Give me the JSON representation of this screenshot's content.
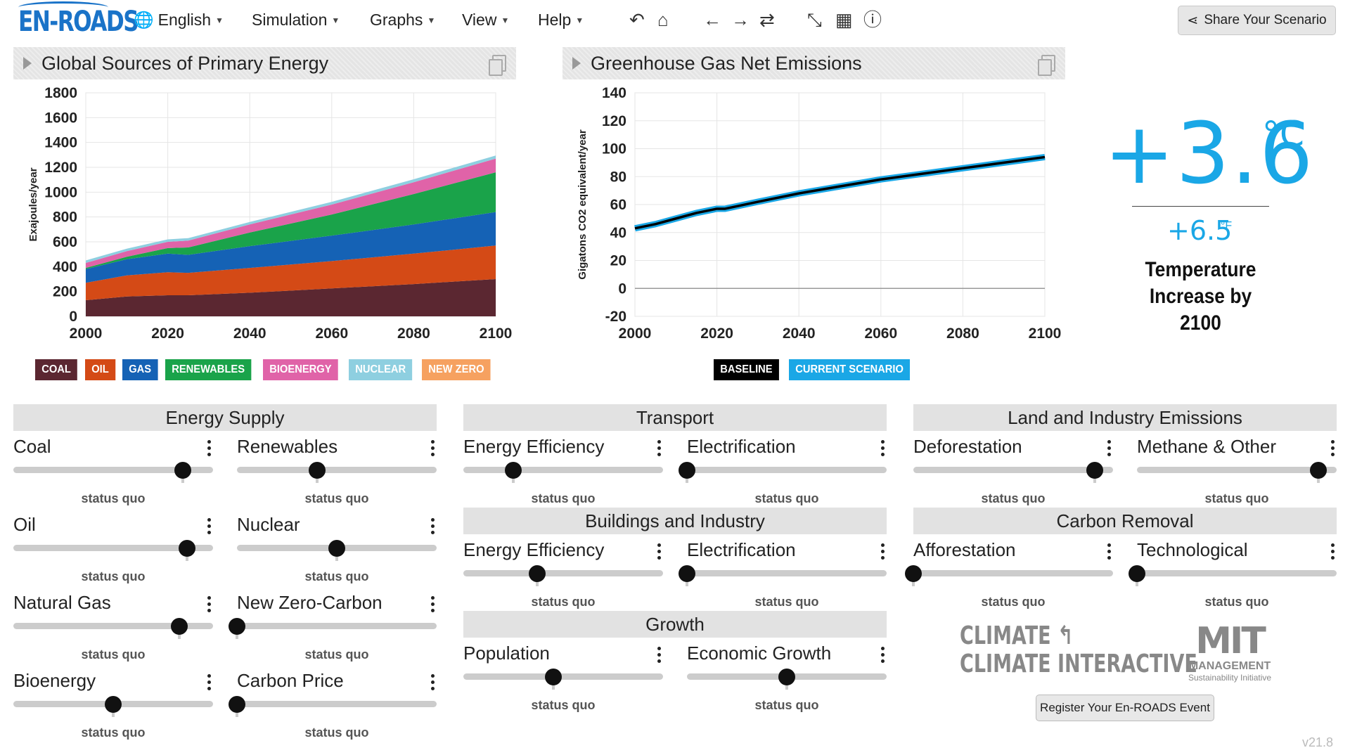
{
  "app": {
    "logo": "EN-ROADS",
    "version": "v21.8"
  },
  "nav": {
    "menus": [
      "English",
      "Simulation",
      "Graphs",
      "View",
      "Help"
    ],
    "share_label": "Share Your Scenario"
  },
  "graph1": {
    "title": "Global Sources of Primary Energy",
    "chart_data": {
      "type": "area",
      "stacked": true,
      "x": [
        2000,
        2010,
        2020,
        2025,
        2040,
        2060,
        2080,
        2100
      ],
      "series": [
        {
          "name": "COAL",
          "values": [
            130,
            160,
            170,
            170,
            190,
            225,
            260,
            300
          ]
        },
        {
          "name": "OIL",
          "values": [
            140,
            170,
            185,
            180,
            200,
            220,
            245,
            270
          ]
        },
        {
          "name": "GAS",
          "values": [
            110,
            130,
            150,
            145,
            175,
            205,
            235,
            270
          ]
        },
        {
          "name": "RENEWABLES",
          "values": [
            10,
            20,
            45,
            60,
            110,
            170,
            245,
            320
          ]
        },
        {
          "name": "BIOENERGY",
          "values": [
            40,
            45,
            50,
            55,
            65,
            80,
            95,
            110
          ]
        },
        {
          "name": "NUCLEAR",
          "values": [
            20,
            20,
            20,
            20,
            20,
            22,
            24,
            25
          ]
        },
        {
          "name": "NEW ZERO",
          "values": [
            0,
            0,
            0,
            0,
            0,
            0,
            0,
            0
          ]
        }
      ],
      "ylabel": "Exajoules/year",
      "ylim": [
        0,
        1800
      ],
      "yticks": [
        0,
        200,
        400,
        600,
        800,
        1000,
        1200,
        1400,
        1600,
        1800
      ],
      "xticks": [
        2000,
        2020,
        2040,
        2060,
        2080,
        2100
      ]
    },
    "legend": [
      "COAL",
      "OIL",
      "GAS",
      "RENEWABLES",
      "BIOENERGY",
      "NUCLEAR",
      "NEW ZERO"
    ]
  },
  "graph2": {
    "title": "Greenhouse Gas Net Emissions",
    "chart_data": {
      "type": "line",
      "x": [
        2000,
        2005,
        2010,
        2015,
        2020,
        2022,
        2030,
        2040,
        2050,
        2060,
        2070,
        2080,
        2090,
        2100
      ],
      "series": [
        {
          "name": "BASELINE",
          "values": [
            43,
            46,
            50,
            54,
            57,
            57,
            62,
            68,
            73,
            78,
            82,
            86,
            90,
            94
          ]
        },
        {
          "name": "CURRENT SCENARIO",
          "values": [
            43,
            46,
            50,
            54,
            57,
            57,
            62,
            68,
            73,
            78,
            82,
            86,
            90,
            94
          ]
        }
      ],
      "ylabel": "Gigatons CO2 equivalent/year",
      "ylim": [
        -20,
        140
      ],
      "yticks": [
        -20,
        0,
        20,
        40,
        60,
        80,
        100,
        120,
        140
      ],
      "xticks": [
        2000,
        2020,
        2040,
        2060,
        2080,
        2100
      ]
    },
    "legend": [
      "BASELINE",
      "CURRENT SCENARIO"
    ]
  },
  "temperature": {
    "celsius": "+3.6",
    "celsius_unit": "°C",
    "fahrenheit": "+6.5",
    "fahrenheit_unit": "°F",
    "caption": "Temperature Increase by 2100"
  },
  "sections": {
    "energy_supply": "Energy Supply",
    "transport": "Transport",
    "land": "Land and Industry Emissions",
    "buildings": "Buildings and Industry",
    "carbon_removal": "Carbon Removal",
    "growth": "Growth"
  },
  "sliders": {
    "coal": {
      "label": "Coal",
      "value": 0.85,
      "status": "status quo"
    },
    "oil": {
      "label": "Oil",
      "value": 0.87,
      "status": "status quo"
    },
    "gas": {
      "label": "Natural Gas",
      "value": 0.83,
      "status": "status quo"
    },
    "bio": {
      "label": "Bioenergy",
      "value": 0.5,
      "status": "status quo"
    },
    "renew": {
      "label": "Renewables",
      "value": 0.4,
      "status": "status quo"
    },
    "nuclear": {
      "label": "Nuclear",
      "value": 0.5,
      "status": "status quo"
    },
    "newzero": {
      "label": "New Zero-Carbon",
      "value": 0.0,
      "status": "status quo"
    },
    "carbon_price": {
      "label": "Carbon Price",
      "value": 0.0,
      "status": "status quo"
    },
    "t_eff": {
      "label": "Energy Efficiency",
      "value": 0.25,
      "status": "status quo"
    },
    "t_elec": {
      "label": "Electrification",
      "value": 0.0,
      "status": "status quo"
    },
    "b_eff": {
      "label": "Energy Efficiency",
      "value": 0.37,
      "status": "status quo"
    },
    "b_elec": {
      "label": "Electrification",
      "value": 0.0,
      "status": "status quo"
    },
    "pop": {
      "label": "Population",
      "value": 0.45,
      "status": "status quo"
    },
    "econ": {
      "label": "Economic Growth",
      "value": 0.5,
      "status": "status quo"
    },
    "defor": {
      "label": "Deforestation",
      "value": 0.91,
      "status": "status quo"
    },
    "methane": {
      "label": "Methane & Other",
      "value": 0.91,
      "status": "status quo"
    },
    "affor": {
      "label": "Afforestation",
      "value": 0.0,
      "status": "status quo"
    },
    "tech": {
      "label": "Technological",
      "value": 0.0,
      "status": "status quo"
    }
  },
  "logos": {
    "climate_interactive": "CLIMATE INTERACTIVE",
    "mit": "MIT",
    "mit_sub": "MANAGEMENT",
    "mit_sub2": "Sustainability Initiative"
  },
  "register_label": "Register Your En-ROADS Event",
  "colors": {
    "coal": "#5b2731",
    "oil": "#d44a16",
    "gas": "#1562b5",
    "renewables": "#1aa34a",
    "bioenergy": "#e063a8",
    "nuclear": "#8ecfe0",
    "newzero": "#f6a160",
    "baseline": "#000000",
    "current": "#1aa7e6"
  }
}
